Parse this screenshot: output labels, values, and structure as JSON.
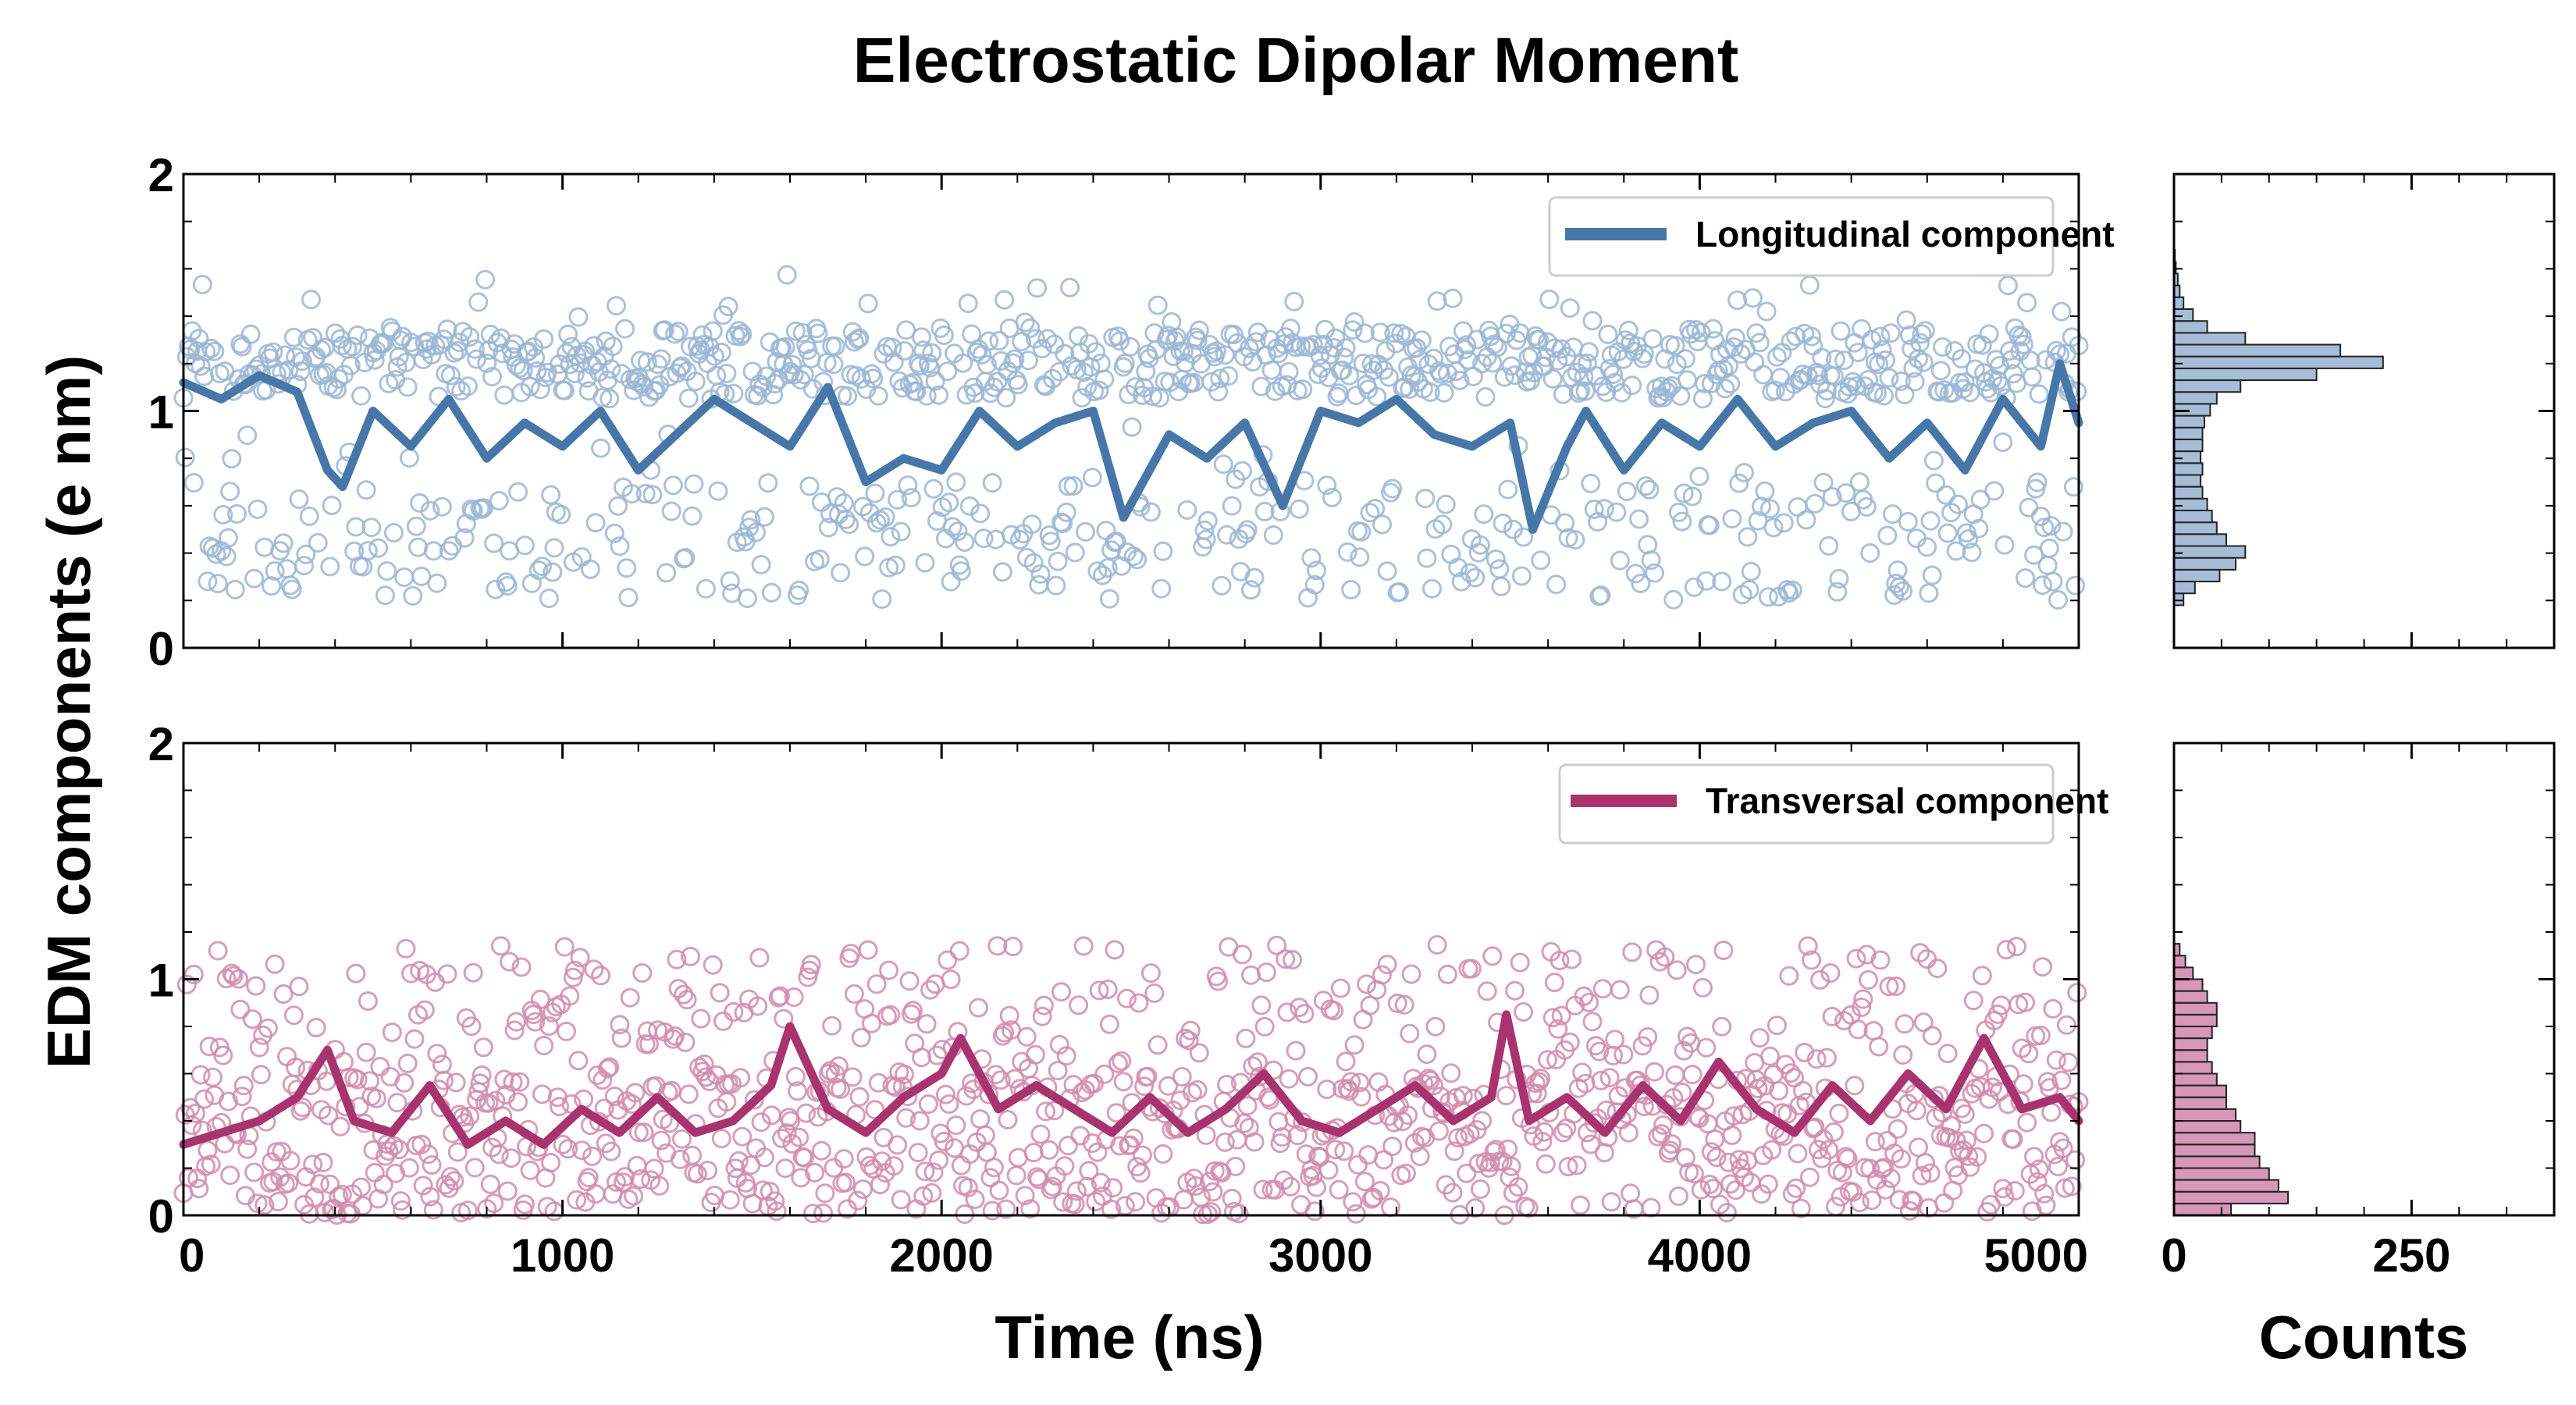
{
  "chart_data": {
    "type": "scatter",
    "title": "Electrostatic Dipolar Moment",
    "xlabel": "Time (ns)",
    "ylabel": "EDM components (e nm)",
    "hist_xlabel": "Counts",
    "xlim": [
      0,
      5000
    ],
    "ylim": [
      0,
      2
    ],
    "x_ticks": [
      "0",
      "1000",
      "2000",
      "3000",
      "4000",
      "5000"
    ],
    "y_ticks": [
      "0",
      "1",
      "2"
    ],
    "hist_xlim": [
      0,
      400
    ],
    "hist_ticks": [
      "0",
      "250"
    ],
    "grid": false,
    "legend_position": "top-right",
    "colors": {
      "longitudinal": "#4677a8",
      "longitudinal_light": "#9bb6d3",
      "transversal": "#a8336f",
      "transversal_light": "#d18cb0"
    },
    "series": [
      {
        "name": "Longitudinal component",
        "role": "longitudinal",
        "scatter_distribution": "bimodal: dense band 1.05-1.35, second band 0.2-0.7",
        "moving_average": [
          {
            "x": 0,
            "y": 1.12
          },
          {
            "x": 100,
            "y": 1.05
          },
          {
            "x": 200,
            "y": 1.15
          },
          {
            "x": 300,
            "y": 1.08
          },
          {
            "x": 380,
            "y": 0.75
          },
          {
            "x": 420,
            "y": 0.68
          },
          {
            "x": 500,
            "y": 1.0
          },
          {
            "x": 600,
            "y": 0.85
          },
          {
            "x": 700,
            "y": 1.05
          },
          {
            "x": 800,
            "y": 0.8
          },
          {
            "x": 900,
            "y": 0.95
          },
          {
            "x": 1000,
            "y": 0.85
          },
          {
            "x": 1100,
            "y": 1.0
          },
          {
            "x": 1200,
            "y": 0.75
          },
          {
            "x": 1300,
            "y": 0.9
          },
          {
            "x": 1400,
            "y": 1.05
          },
          {
            "x": 1500,
            "y": 0.95
          },
          {
            "x": 1600,
            "y": 0.85
          },
          {
            "x": 1700,
            "y": 1.1
          },
          {
            "x": 1800,
            "y": 0.7
          },
          {
            "x": 1900,
            "y": 0.8
          },
          {
            "x": 2000,
            "y": 0.75
          },
          {
            "x": 2100,
            "y": 1.0
          },
          {
            "x": 2200,
            "y": 0.85
          },
          {
            "x": 2300,
            "y": 0.95
          },
          {
            "x": 2400,
            "y": 1.0
          },
          {
            "x": 2480,
            "y": 0.55
          },
          {
            "x": 2600,
            "y": 0.9
          },
          {
            "x": 2700,
            "y": 0.8
          },
          {
            "x": 2800,
            "y": 0.95
          },
          {
            "x": 2900,
            "y": 0.6
          },
          {
            "x": 3000,
            "y": 1.0
          },
          {
            "x": 3100,
            "y": 0.95
          },
          {
            "x": 3200,
            "y": 1.05
          },
          {
            "x": 3300,
            "y": 0.9
          },
          {
            "x": 3400,
            "y": 0.85
          },
          {
            "x": 3500,
            "y": 0.95
          },
          {
            "x": 3560,
            "y": 0.5
          },
          {
            "x": 3650,
            "y": 0.85
          },
          {
            "x": 3700,
            "y": 1.0
          },
          {
            "x": 3800,
            "y": 0.75
          },
          {
            "x": 3900,
            "y": 0.95
          },
          {
            "x": 4000,
            "y": 0.85
          },
          {
            "x": 4100,
            "y": 1.05
          },
          {
            "x": 4200,
            "y": 0.85
          },
          {
            "x": 4300,
            "y": 0.95
          },
          {
            "x": 4400,
            "y": 1.0
          },
          {
            "x": 4500,
            "y": 0.8
          },
          {
            "x": 4600,
            "y": 0.95
          },
          {
            "x": 4700,
            "y": 0.75
          },
          {
            "x": 4800,
            "y": 1.05
          },
          {
            "x": 4900,
            "y": 0.85
          },
          {
            "x": 4950,
            "y": 1.2
          },
          {
            "x": 5000,
            "y": 0.95
          }
        ],
        "histogram": [
          {
            "y_low": 0.18,
            "y_high": 0.23,
            "count": 10
          },
          {
            "y_low": 0.23,
            "y_high": 0.28,
            "count": 22
          },
          {
            "y_low": 0.28,
            "y_high": 0.33,
            "count": 48
          },
          {
            "y_low": 0.33,
            "y_high": 0.38,
            "count": 65
          },
          {
            "y_low": 0.38,
            "y_high": 0.43,
            "count": 75
          },
          {
            "y_low": 0.43,
            "y_high": 0.48,
            "count": 55
          },
          {
            "y_low": 0.48,
            "y_high": 0.53,
            "count": 45
          },
          {
            "y_low": 0.53,
            "y_high": 0.58,
            "count": 40
          },
          {
            "y_low": 0.58,
            "y_high": 0.63,
            "count": 35
          },
          {
            "y_low": 0.63,
            "y_high": 0.68,
            "count": 30
          },
          {
            "y_low": 0.68,
            "y_high": 0.73,
            "count": 28
          },
          {
            "y_low": 0.73,
            "y_high": 0.78,
            "count": 30
          },
          {
            "y_low": 0.78,
            "y_high": 0.83,
            "count": 28
          },
          {
            "y_low": 0.83,
            "y_high": 0.88,
            "count": 30
          },
          {
            "y_low": 0.88,
            "y_high": 0.93,
            "count": 30
          },
          {
            "y_low": 0.93,
            "y_high": 0.98,
            "count": 32
          },
          {
            "y_low": 0.98,
            "y_high": 1.03,
            "count": 38
          },
          {
            "y_low": 1.03,
            "y_high": 1.08,
            "count": 45
          },
          {
            "y_low": 1.08,
            "y_high": 1.13,
            "count": 70
          },
          {
            "y_low": 1.13,
            "y_high": 1.18,
            "count": 150
          },
          {
            "y_low": 1.18,
            "y_high": 1.23,
            "count": 220
          },
          {
            "y_low": 1.23,
            "y_high": 1.28,
            "count": 175
          },
          {
            "y_low": 1.28,
            "y_high": 1.33,
            "count": 75
          },
          {
            "y_low": 1.33,
            "y_high": 1.38,
            "count": 35
          },
          {
            "y_low": 1.38,
            "y_high": 1.43,
            "count": 20
          },
          {
            "y_low": 1.43,
            "y_high": 1.48,
            "count": 10
          },
          {
            "y_low": 1.48,
            "y_high": 1.53,
            "count": 6
          },
          {
            "y_low": 1.53,
            "y_high": 1.58,
            "count": 4
          },
          {
            "y_low": 1.58,
            "y_high": 1.63,
            "count": 2
          },
          {
            "y_low": 1.63,
            "y_high": 1.68,
            "count": 1
          }
        ]
      },
      {
        "name": "Transversal component",
        "role": "transversal",
        "scatter_distribution": "skewed: mostly 0.0-0.6, tail up to 1.15",
        "moving_average": [
          {
            "x": 0,
            "y": 0.3
          },
          {
            "x": 100,
            "y": 0.35
          },
          {
            "x": 200,
            "y": 0.4
          },
          {
            "x": 300,
            "y": 0.5
          },
          {
            "x": 380,
            "y": 0.7
          },
          {
            "x": 450,
            "y": 0.4
          },
          {
            "x": 550,
            "y": 0.35
          },
          {
            "x": 650,
            "y": 0.55
          },
          {
            "x": 750,
            "y": 0.3
          },
          {
            "x": 850,
            "y": 0.4
          },
          {
            "x": 950,
            "y": 0.3
          },
          {
            "x": 1050,
            "y": 0.45
          },
          {
            "x": 1150,
            "y": 0.35
          },
          {
            "x": 1250,
            "y": 0.5
          },
          {
            "x": 1350,
            "y": 0.35
          },
          {
            "x": 1450,
            "y": 0.4
          },
          {
            "x": 1550,
            "y": 0.55
          },
          {
            "x": 1600,
            "y": 0.8
          },
          {
            "x": 1700,
            "y": 0.45
          },
          {
            "x": 1800,
            "y": 0.35
          },
          {
            "x": 1900,
            "y": 0.5
          },
          {
            "x": 2000,
            "y": 0.6
          },
          {
            "x": 2050,
            "y": 0.75
          },
          {
            "x": 2150,
            "y": 0.45
          },
          {
            "x": 2250,
            "y": 0.55
          },
          {
            "x": 2350,
            "y": 0.45
          },
          {
            "x": 2450,
            "y": 0.35
          },
          {
            "x": 2550,
            "y": 0.5
          },
          {
            "x": 2650,
            "y": 0.35
          },
          {
            "x": 2750,
            "y": 0.45
          },
          {
            "x": 2850,
            "y": 0.6
          },
          {
            "x": 2950,
            "y": 0.4
          },
          {
            "x": 3050,
            "y": 0.35
          },
          {
            "x": 3150,
            "y": 0.45
          },
          {
            "x": 3250,
            "y": 0.55
          },
          {
            "x": 3350,
            "y": 0.4
          },
          {
            "x": 3450,
            "y": 0.5
          },
          {
            "x": 3490,
            "y": 0.85
          },
          {
            "x": 3550,
            "y": 0.4
          },
          {
            "x": 3650,
            "y": 0.5
          },
          {
            "x": 3750,
            "y": 0.35
          },
          {
            "x": 3850,
            "y": 0.55
          },
          {
            "x": 3950,
            "y": 0.4
          },
          {
            "x": 4050,
            "y": 0.65
          },
          {
            "x": 4150,
            "y": 0.45
          },
          {
            "x": 4250,
            "y": 0.35
          },
          {
            "x": 4350,
            "y": 0.55
          },
          {
            "x": 4450,
            "y": 0.4
          },
          {
            "x": 4550,
            "y": 0.6
          },
          {
            "x": 4650,
            "y": 0.45
          },
          {
            "x": 4750,
            "y": 0.75
          },
          {
            "x": 4850,
            "y": 0.45
          },
          {
            "x": 4950,
            "y": 0.5
          },
          {
            "x": 5000,
            "y": 0.4
          }
        ],
        "histogram": [
          {
            "y_low": 0.0,
            "y_high": 0.05,
            "count": 60
          },
          {
            "y_low": 0.05,
            "y_high": 0.1,
            "count": 120
          },
          {
            "y_low": 0.1,
            "y_high": 0.15,
            "count": 110
          },
          {
            "y_low": 0.15,
            "y_high": 0.2,
            "count": 100
          },
          {
            "y_low": 0.2,
            "y_high": 0.25,
            "count": 90
          },
          {
            "y_low": 0.25,
            "y_high": 0.3,
            "count": 85
          },
          {
            "y_low": 0.3,
            "y_high": 0.35,
            "count": 85
          },
          {
            "y_low": 0.35,
            "y_high": 0.4,
            "count": 70
          },
          {
            "y_low": 0.4,
            "y_high": 0.45,
            "count": 65
          },
          {
            "y_low": 0.45,
            "y_high": 0.5,
            "count": 55
          },
          {
            "y_low": 0.5,
            "y_high": 0.55,
            "count": 55
          },
          {
            "y_low": 0.55,
            "y_high": 0.6,
            "count": 45
          },
          {
            "y_low": 0.6,
            "y_high": 0.65,
            "count": 40
          },
          {
            "y_low": 0.65,
            "y_high": 0.7,
            "count": 35
          },
          {
            "y_low": 0.7,
            "y_high": 0.75,
            "count": 35
          },
          {
            "y_low": 0.75,
            "y_high": 0.8,
            "count": 40
          },
          {
            "y_low": 0.8,
            "y_high": 0.85,
            "count": 45
          },
          {
            "y_low": 0.85,
            "y_high": 0.9,
            "count": 45
          },
          {
            "y_low": 0.9,
            "y_high": 0.95,
            "count": 35
          },
          {
            "y_low": 0.95,
            "y_high": 1.0,
            "count": 30
          },
          {
            "y_low": 1.0,
            "y_high": 1.05,
            "count": 20
          },
          {
            "y_low": 1.05,
            "y_high": 1.1,
            "count": 12
          },
          {
            "y_low": 1.1,
            "y_high": 1.15,
            "count": 6
          }
        ]
      }
    ]
  }
}
